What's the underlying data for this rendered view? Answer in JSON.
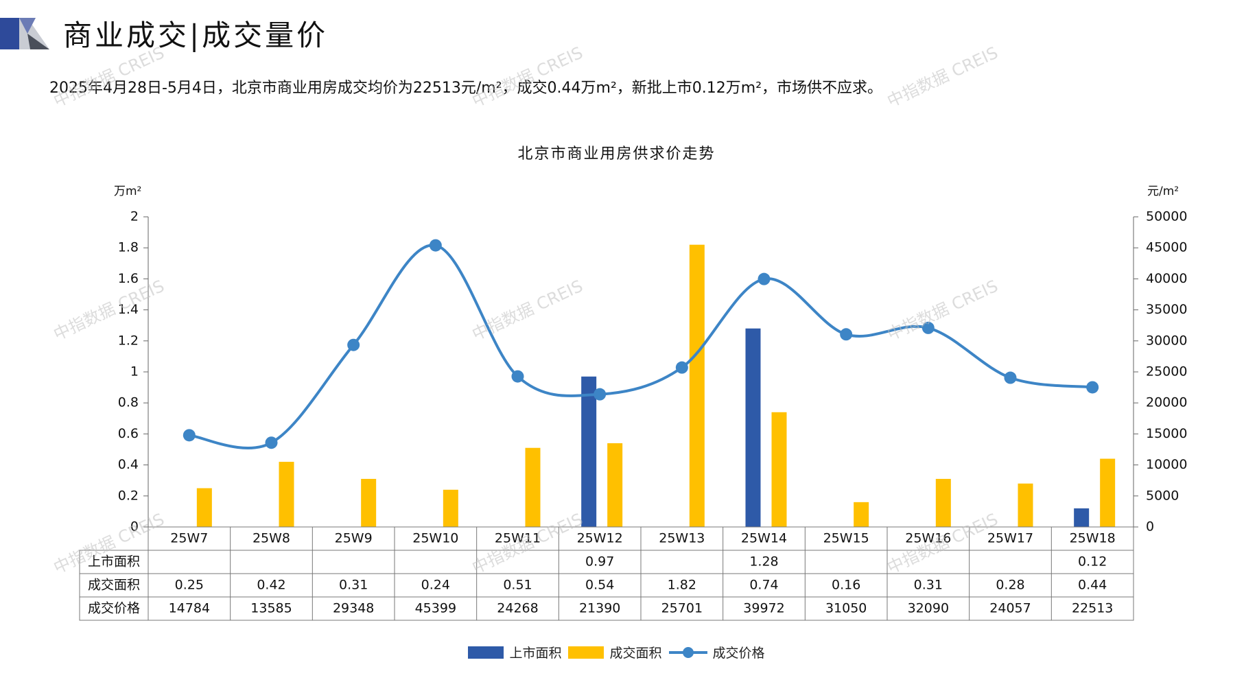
{
  "header": {
    "title": "商业成交|成交量价",
    "summary": "2025年4月28日-5月4日，北京市商业用房成交均价为22513元/m²，成交0.44万m²，新批上市0.12万m²，市场供不应求。"
  },
  "watermark": "中指数据 CREIS",
  "colors": {
    "supply": "#2e5aa8",
    "deal_area": "#ffc000",
    "price": "#3d85c6",
    "logo_dark": "#2e4a9a",
    "logo_light": "#b9bcc4"
  },
  "chart_data": {
    "type": "bar",
    "title": "北京市商业用房供求价走势",
    "ylabel_left": "万m²",
    "ylabel_right": "元/m²",
    "ylim_left": [
      0,
      2
    ],
    "yticks_left": [
      "0",
      "0.2",
      "0.4",
      "0.6",
      "0.8",
      "1",
      "1.2",
      "1.4",
      "1.6",
      "1.8",
      "2"
    ],
    "ylim_right": [
      0,
      50000
    ],
    "yticks_right": [
      "0",
      "5000",
      "10000",
      "15000",
      "20000",
      "25000",
      "30000",
      "35000",
      "40000",
      "45000",
      "50000"
    ],
    "categories": [
      "25W7",
      "25W8",
      "25W9",
      "25W10",
      "25W11",
      "25W12",
      "25W13",
      "25W14",
      "25W15",
      "25W16",
      "25W17",
      "25W18"
    ],
    "series": [
      {
        "name": "上市面积",
        "type": "bar",
        "axis": "left",
        "values": [
          null,
          null,
          null,
          null,
          null,
          0.97,
          null,
          1.28,
          null,
          null,
          null,
          0.12
        ]
      },
      {
        "name": "成交面积",
        "type": "bar",
        "axis": "left",
        "values": [
          0.25,
          0.42,
          0.31,
          0.24,
          0.51,
          0.54,
          1.82,
          0.74,
          0.16,
          0.31,
          0.28,
          0.44
        ]
      },
      {
        "name": "成交价格",
        "type": "line",
        "axis": "right",
        "values": [
          14784,
          13585,
          29348,
          45399,
          24268,
          21390,
          25701,
          39972,
          31050,
          32090,
          24057,
          22513
        ]
      }
    ],
    "table_rows": [
      {
        "label": "上市面积",
        "cells": [
          "",
          "",
          "",
          "",
          "",
          "0.97",
          "",
          "1.28",
          "",
          "",
          "",
          "0.12"
        ]
      },
      {
        "label": "成交面积",
        "cells": [
          "0.25",
          "0.42",
          "0.31",
          "0.24",
          "0.51",
          "0.54",
          "1.82",
          "0.74",
          "0.16",
          "0.31",
          "0.28",
          "0.44"
        ]
      },
      {
        "label": "成交价格",
        "cells": [
          "14784",
          "13585",
          "29348",
          "45399",
          "24268",
          "21390",
          "25701",
          "39972",
          "31050",
          "32090",
          "24057",
          "22513"
        ]
      }
    ],
    "legend": [
      "上市面积",
      "成交面积",
      "成交价格"
    ],
    "legend_position": "bottom",
    "grid": false
  }
}
